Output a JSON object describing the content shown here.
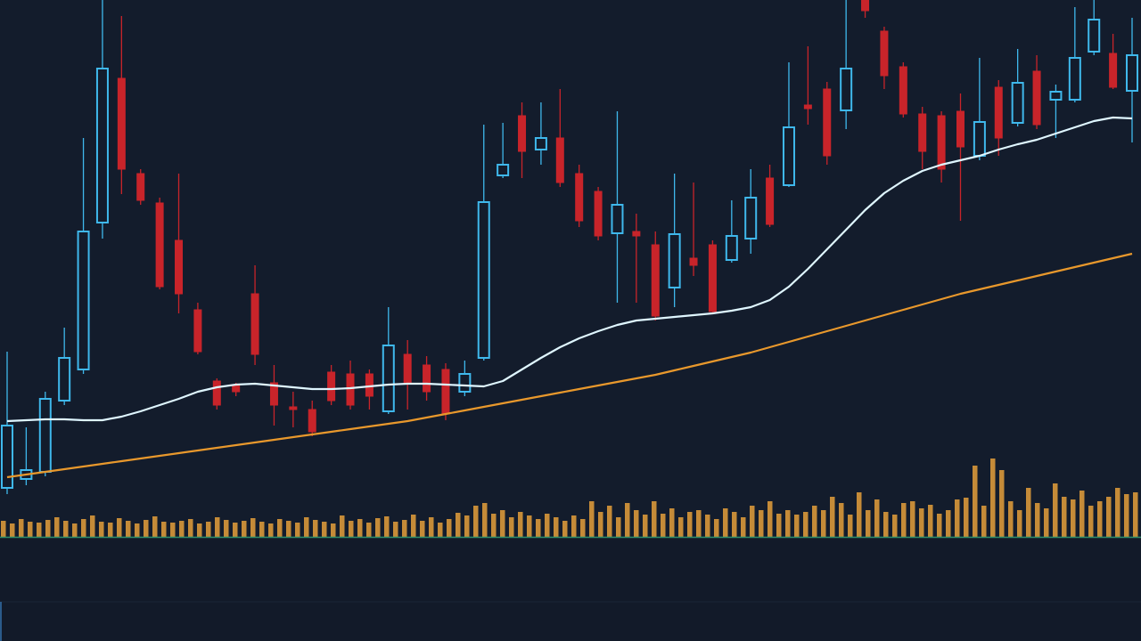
{
  "chart_data": {
    "type": "candlestick",
    "ylim": [
      0,
      600
    ],
    "up_color": "#3fb8ec",
    "down_color": "#c8242a",
    "open": [
      52,
      62,
      70,
      150,
      185,
      350,
      512,
      405,
      372,
      330,
      252,
      172,
      167,
      270,
      170,
      143,
      140,
      182,
      180,
      180,
      138,
      202,
      190,
      185,
      160,
      198,
      403,
      470,
      432,
      445,
      405,
      385,
      338,
      340,
      325,
      277,
      310,
      325,
      308,
      332,
      400,
      392,
      482,
      500,
      476,
      600,
      565,
      525,
      472,
      470,
      475,
      425,
      502,
      462,
      520,
      488,
      488,
      542,
      540,
      498
    ],
    "high": [
      205,
      120,
      160,
      232,
      445,
      600,
      582,
      410,
      378,
      405,
      260,
      175,
      170,
      302,
      190,
      160,
      150,
      190,
      195,
      185,
      255,
      218,
      200,
      192,
      195,
      460,
      462,
      485,
      485,
      500,
      415,
      390,
      475,
      360,
      340,
      405,
      395,
      330,
      375,
      410,
      415,
      530,
      548,
      508,
      600,
      600,
      570,
      530,
      480,
      475,
      495,
      535,
      510,
      545,
      538,
      505,
      592,
      600,
      562,
      580
    ],
    "low": [
      45,
      55,
      65,
      145,
      180,
      332,
      382,
      370,
      275,
      248,
      202,
      140,
      155,
      190,
      122,
      120,
      110,
      145,
      140,
      140,
      135,
      140,
      150,
      128,
      155,
      195,
      400,
      400,
      415,
      390,
      345,
      330,
      260,
      260,
      240,
      255,
      290,
      248,
      305,
      315,
      345,
      390,
      460,
      415,
      455,
      580,
      500,
      468,
      410,
      395,
      352,
      420,
      425,
      458,
      455,
      445,
      485,
      538,
      500,
      440
    ],
    "close": [
      122,
      72,
      152,
      198,
      340,
      523,
      410,
      375,
      278,
      270,
      205,
      145,
      160,
      202,
      145,
      140,
      115,
      150,
      145,
      155,
      212,
      170,
      160,
      135,
      180,
      373,
      415,
      430,
      445,
      395,
      352,
      335,
      370,
      335,
      245,
      337,
      302,
      250,
      335,
      378,
      348,
      457,
      478,
      425,
      523,
      588,
      515,
      472,
      430,
      410,
      435,
      463,
      445,
      507,
      460,
      497,
      535,
      578,
      502,
      538
    ],
    "lines": [
      {
        "color": "#dff6ff",
        "values": [
          127,
          128,
          129,
          129,
          128,
          128,
          132,
          138,
          145,
          152,
          160,
          165,
          168,
          169,
          167,
          165,
          163,
          163,
          164,
          166,
          168,
          169,
          169,
          168,
          167,
          166,
          172,
          185,
          198,
          210,
          220,
          228,
          235,
          240,
          242,
          244,
          246,
          248,
          251,
          255,
          263,
          278,
          298,
          320,
          342,
          364,
          383,
          397,
          408,
          415,
          420,
          425,
          432,
          438,
          443,
          450,
          457,
          464,
          468,
          467
        ]
      },
      {
        "color": "#e8982c",
        "values": [
          64,
          67,
          70,
          73,
          76,
          79,
          82,
          85,
          88,
          91,
          94,
          97,
          100,
          103,
          106,
          109,
          112,
          115,
          118,
          121,
          124,
          127,
          131,
          135,
          139,
          143,
          147,
          151,
          155,
          159,
          163,
          167,
          171,
          175,
          179,
          184,
          189,
          194,
          199,
          204,
          210,
          216,
          222,
          228,
          234,
          240,
          246,
          252,
          258,
          264,
          270,
          275,
          280,
          285,
          290,
          295,
          300,
          305,
          310,
          315
        ]
      }
    ],
    "volume": {
      "color": "#d9983a",
      "baseline_color": "#2f8f6a",
      "ylim": [
        0,
        100
      ],
      "values": [
        18,
        15,
        20,
        17,
        16,
        19,
        22,
        18,
        15,
        20,
        24,
        17,
        16,
        21,
        18,
        15,
        19,
        23,
        17,
        16,
        18,
        20,
        15,
        17,
        22,
        19,
        16,
        18,
        21,
        17,
        15,
        20,
        18,
        16,
        22,
        19,
        17,
        15,
        24,
        18,
        20,
        16,
        21,
        23,
        17,
        19,
        25,
        18,
        22,
        16,
        20,
        27,
        24,
        35,
        38,
        26,
        30,
        22,
        28,
        24,
        20,
        26,
        22,
        18,
        24,
        20,
        40,
        28,
        35,
        22,
        38,
        30,
        25,
        40,
        26,
        32,
        22,
        28,
        30,
        25,
        20,
        32,
        28,
        22,
        35,
        30,
        40,
        26,
        30,
        25,
        28,
        35,
        30,
        45,
        38,
        25,
        50,
        30,
        42,
        28,
        25,
        38,
        40,
        32,
        36,
        26,
        30,
        42,
        44,
        80,
        35,
        88,
        75,
        40,
        30,
        55,
        38,
        32,
        60,
        45,
        42,
        52,
        35,
        40,
        45,
        55,
        48,
        50
      ]
    }
  }
}
